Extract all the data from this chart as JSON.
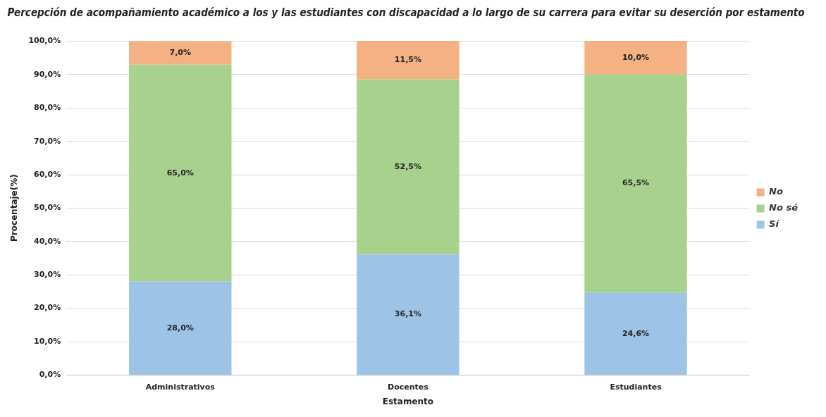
{
  "chart_data": {
    "type": "bar",
    "title": "Percepción de acompañamiento académico a los y las estudiantes con discapacidad a lo largo de su carrera para evitar su deserción por estamento",
    "xlabel": "Estamento",
    "ylabel": "Procentaje(%)",
    "categories": [
      "Administrativos",
      "Docentes",
      "Estudiantes"
    ],
    "stacked": true,
    "legend": "right",
    "grid": "y",
    "ylim": [
      0,
      100.1
    ],
    "yticks": [
      {
        "value": 0,
        "label": "0,0%"
      },
      {
        "value": 10,
        "label": "10,0%"
      },
      {
        "value": 20,
        "label": "20,0%"
      },
      {
        "value": 30,
        "label": "30,0%"
      },
      {
        "value": 40,
        "label": "40,0%"
      },
      {
        "value": 50,
        "label": "50,0%"
      },
      {
        "value": 60,
        "label": "60,0%"
      },
      {
        "value": 70,
        "label": "70,0%"
      },
      {
        "value": 80,
        "label": "80,0%"
      },
      {
        "value": 90,
        "label": "90,0%"
      },
      {
        "value": 100,
        "label": "100,0%"
      }
    ],
    "series": [
      {
        "name": "Sí",
        "color": "#9dc3e6",
        "values": [
          28.0,
          36.1,
          24.6
        ],
        "value_labels": [
          "28,0%",
          "36,1%",
          "24,6%"
        ]
      },
      {
        "name": "No sé",
        "color": "#a9d18e",
        "values": [
          65.0,
          52.5,
          65.5
        ],
        "value_labels": [
          "65,0%",
          "52,5%",
          "65,5%"
        ]
      },
      {
        "name": "No",
        "color": "#f4b183",
        "values": [
          7.0,
          11.5,
          10.0
        ],
        "value_labels": [
          "7,0%",
          "11,5%",
          "10,0%"
        ]
      }
    ]
  }
}
